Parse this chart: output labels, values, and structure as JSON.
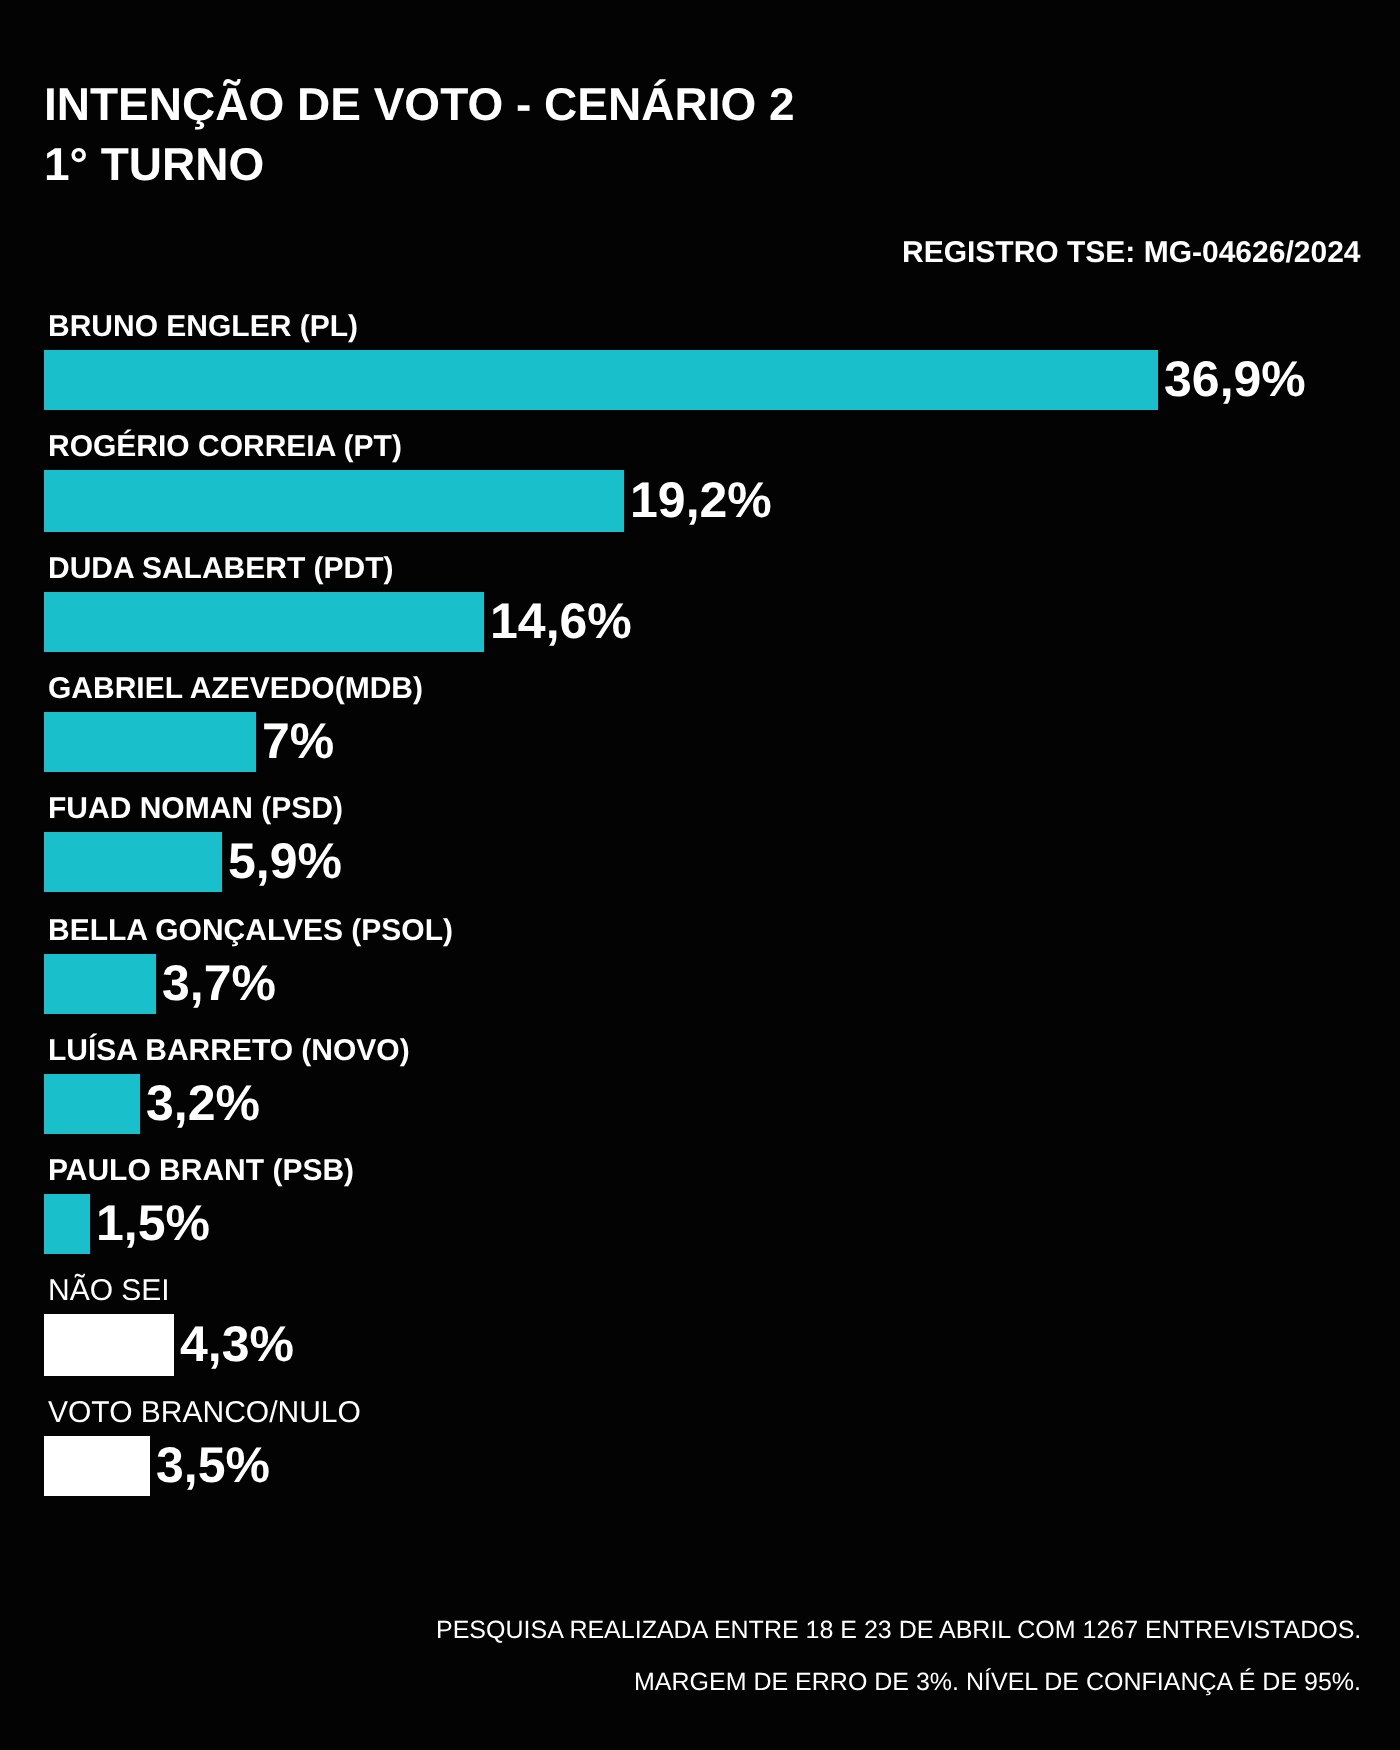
{
  "chart_data": {
    "type": "bar",
    "orientation": "horizontal",
    "title": "INTENÇÃO DE VOTO - CENÁRIO 2\n1° TURNO",
    "subtitle": "REGISTRO TSE: MG-04626/2024",
    "categories": [
      "BRUNO ENGLER (PL)",
      "ROGÉRIO CORREIA (PT)",
      "DUDA SALABERT (PDT)",
      "GABRIEL AZEVEDO(MDB)",
      "FUAD NOMAN (PSD)",
      "BELLA GONÇALVES (PSOL)",
      "LUÍSA BARRETO (NOVO)",
      "PAULO BRANT (PSB)",
      "NÃO SEI",
      "VOTO BRANCO/NULO"
    ],
    "values": [
      36.9,
      19.2,
      14.6,
      7,
      5.9,
      3.7,
      3.2,
      1.5,
      4.3,
      3.5
    ],
    "colors": [
      "#19bfcb",
      "#19bfcb",
      "#19bfcb",
      "#19bfcb",
      "#19bfcb",
      "#19bfcb",
      "#19bfcb",
      "#19bfcb",
      "#ffffff",
      "#ffffff"
    ],
    "value_labels": [
      "36,9%",
      "19,2%",
      "14,6%",
      "7%",
      "5,9%",
      "3,7%",
      "3,2%",
      "1,5%",
      "4,3%",
      "3,5%"
    ],
    "annotations": [
      "PESQUISA REALIZADA ENTRE 18 E 23 DE ABRIL COM 1267 ENTREVISTADOS.",
      "MARGEM DE ERRO DE 3%. NÍVEL DE CONFIANÇA É DE 95%."
    ]
  }
}
